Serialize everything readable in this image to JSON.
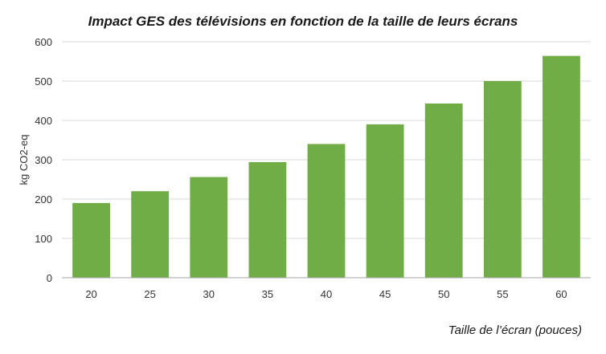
{
  "chart_data": {
    "type": "bar",
    "title": "Impact GES des télévisions en fonction de la taille de leurs écrans",
    "xlabel": "Taille de l’écran (pouces)",
    "ylabel": "kg CO2-eq",
    "categories": [
      "20",
      "25",
      "30",
      "35",
      "40",
      "45",
      "50",
      "55",
      "60"
    ],
    "values": [
      190,
      220,
      256,
      294,
      340,
      390,
      443,
      500,
      564
    ],
    "ylim": [
      0,
      600
    ],
    "yticks": [
      "0",
      "100",
      "200",
      "300",
      "400",
      "500",
      "600"
    ],
    "grid": true,
    "legend": "none",
    "colors": {
      "bar": "#70ad47",
      "grid": "#d9d9d9",
      "axis": "#a6a6a6"
    }
  }
}
